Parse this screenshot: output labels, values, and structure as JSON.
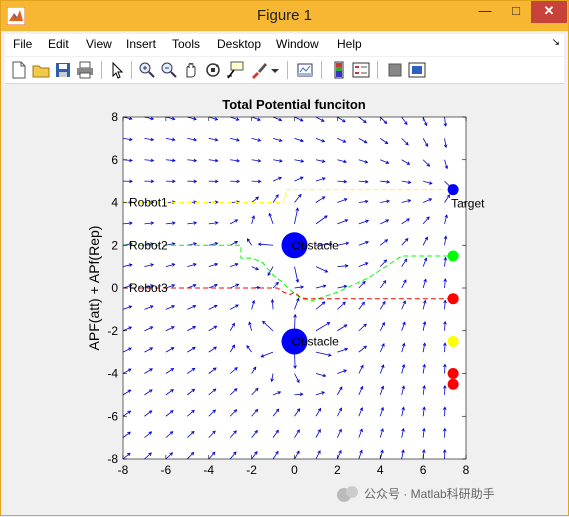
{
  "window": {
    "title": "Figure 1",
    "app_icon": "matlab-icon",
    "minimize": "—",
    "maximize": "□",
    "close": "✕"
  },
  "menubar": {
    "items": [
      "File",
      "Edit",
      "View",
      "Insert",
      "Tools",
      "Desktop",
      "Window",
      "Help"
    ],
    "overflow": "↘"
  },
  "toolbar": {
    "icons": [
      "new-figure-icon",
      "open-file-icon",
      "save-icon",
      "print-icon",
      "edit-plot-arrow-icon",
      "zoom-in-icon",
      "zoom-out-icon",
      "pan-hand-icon",
      "rotate-3d-icon",
      "data-cursor-icon",
      "brush-icon",
      "brush-dropdown-icon",
      "link-plot-icon",
      "insert-colorbar-icon",
      "insert-legend-icon",
      "hide-plot-tools-icon",
      "show-plot-tools-icon"
    ]
  },
  "chart_data": {
    "type": "scatter",
    "title": "Total Potential funciton",
    "xlabel": "",
    "ylabel": "APF(att) + APf(Rep)",
    "xlim": [
      -8,
      8
    ],
    "ylim": [
      -8,
      8
    ],
    "xticks": [
      "-8",
      "-6",
      "-4",
      "-2",
      "0",
      "2",
      "4",
      "6",
      "8"
    ],
    "yticks": [
      "8",
      "6",
      "4",
      "2",
      "0",
      "-2",
      "-4",
      "-6",
      "-8"
    ],
    "grid": false,
    "obstacles": [
      {
        "label": "Obstacle",
        "x": 0,
        "y": 2,
        "color": "#0000ff"
      },
      {
        "label": "Obstacle",
        "x": 0,
        "y": -2.5,
        "color": "#0000ff"
      }
    ],
    "target": {
      "label": "Target",
      "x": 7.4,
      "y": 4.6,
      "color": "#0000ff"
    },
    "robots": [
      {
        "label": "Robot1",
        "x": -8,
        "y": 4,
        "color": "#ffff00",
        "path": [
          [
            -8,
            4
          ],
          [
            -0.5,
            4
          ],
          [
            -0.5,
            4.3
          ],
          [
            -0.4,
            4.3
          ],
          [
            -0.4,
            4.6
          ],
          [
            7.4,
            4.6
          ]
        ]
      },
      {
        "label": "Robot2",
        "x": -8,
        "y": 2,
        "color": "#00ff00",
        "path": [
          [
            -8,
            2
          ],
          [
            -2.5,
            2
          ],
          [
            -2.5,
            1.4
          ],
          [
            -2,
            1.4
          ],
          [
            -1.5,
            1.2
          ],
          [
            -1,
            0.6
          ],
          [
            -0.6,
            0.3
          ],
          [
            -0.3,
            0
          ],
          [
            0.3,
            -0.5
          ],
          [
            0.8,
            -0.6
          ],
          [
            2,
            -0.2
          ],
          [
            3.5,
            0.5
          ],
          [
            5,
            1.5
          ],
          [
            7.4,
            1.5
          ]
        ]
      },
      {
        "label": "Robot3",
        "x": -8,
        "y": 0,
        "color": "#ff0000",
        "path": [
          [
            -8,
            0
          ],
          [
            -0.8,
            0
          ],
          [
            -0.5,
            -0.2
          ],
          [
            -0.2,
            -0.3
          ],
          [
            0,
            -0.2
          ],
          [
            0.3,
            -0.45
          ],
          [
            0.6,
            -0.5
          ],
          [
            1,
            -0.5
          ],
          [
            7.4,
            -0.5
          ]
        ]
      }
    ],
    "end_markers": [
      {
        "x": 7.4,
        "y": 1.5,
        "color": "#00ff00"
      },
      {
        "x": 7.4,
        "y": -0.5,
        "color": "#ff0000"
      },
      {
        "x": 7.4,
        "y": -2.5,
        "color": "#ffff00"
      },
      {
        "x": 7.4,
        "y": -4.0,
        "color": "#ff0000"
      },
      {
        "x": 7.4,
        "y": -4.5,
        "color": "#ff0000"
      }
    ],
    "quiver": {
      "color": "#0000cc",
      "x": [
        -8,
        -7,
        -6,
        -5,
        -4,
        -3,
        -2,
        -1,
        0,
        1,
        2,
        3,
        4,
        5,
        6,
        7,
        8
      ],
      "y": [
        8,
        7,
        6,
        5,
        4,
        3,
        2,
        1,
        0,
        -1,
        -2,
        -3,
        -4,
        -5,
        -6,
        -7,
        -8
      ]
    }
  },
  "watermark": "公众号 · Matlab科研助手"
}
